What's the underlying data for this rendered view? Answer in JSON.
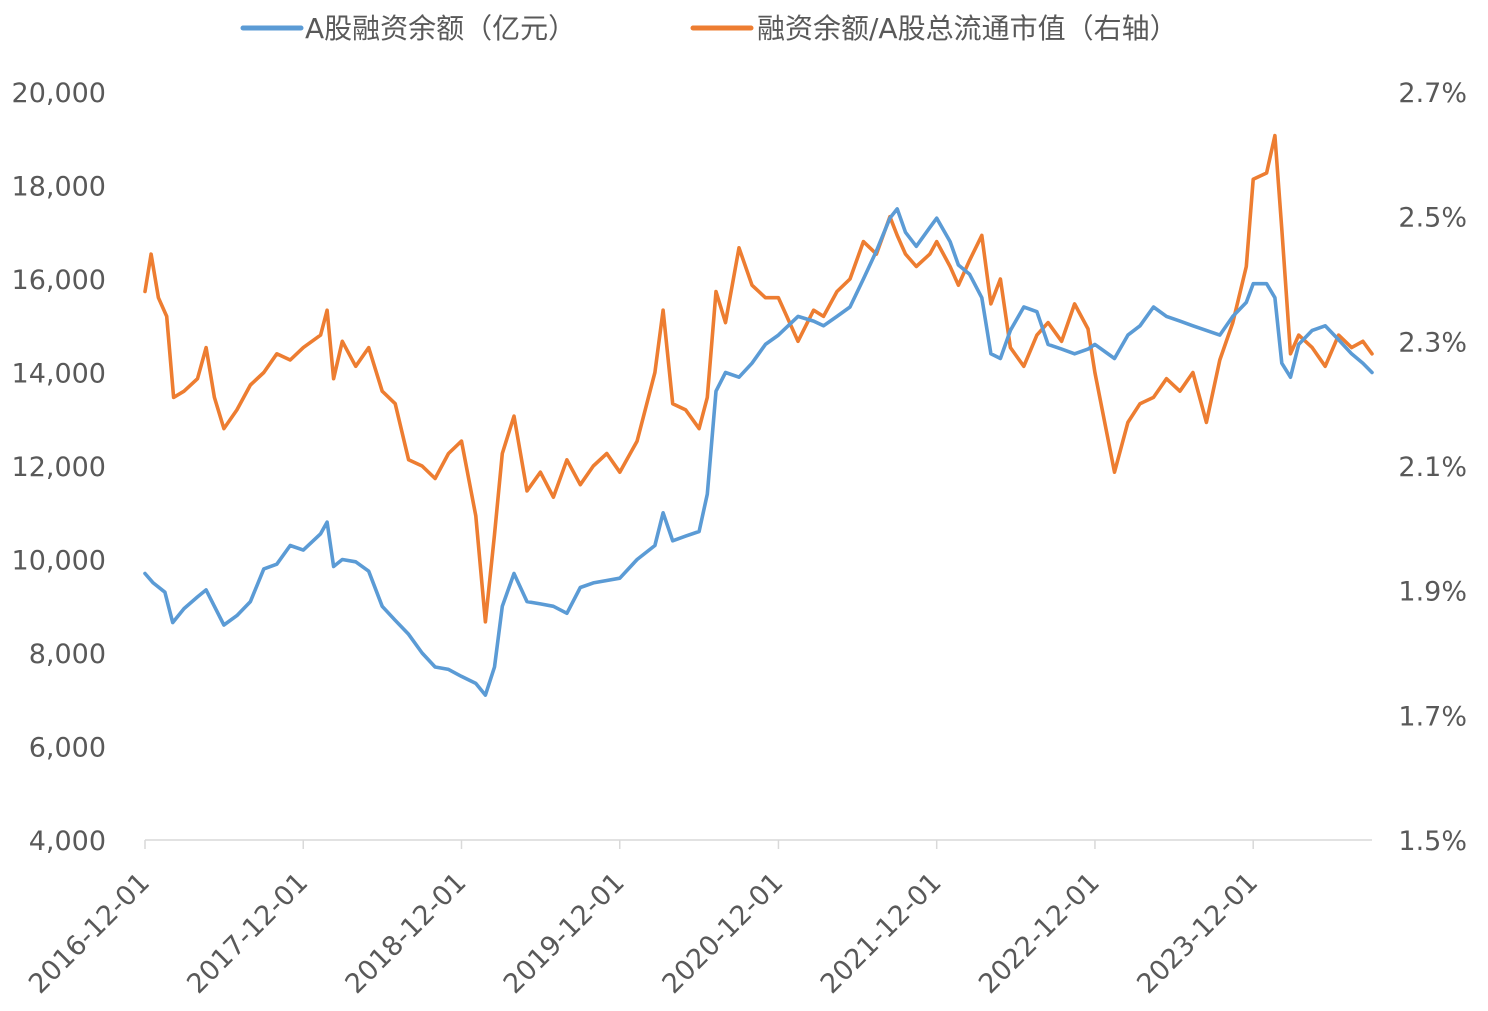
{
  "chart_data": {
    "type": "line",
    "title": "",
    "xlabel": "",
    "ylabel": "",
    "legend_position": "top",
    "grid": false,
    "x_ticks": [
      "2016-12-01",
      "2017-12-01",
      "2018-12-01",
      "2019-12-01",
      "2020-12-01",
      "2021-12-01",
      "2022-12-01",
      "2023-12-01"
    ],
    "x_range": [
      "2016-12-01",
      "2024-08-31"
    ],
    "y_left": {
      "range": [
        4000,
        20000
      ],
      "ticks": [
        "4,000",
        "6,000",
        "8,000",
        "10,000",
        "12,000",
        "14,000",
        "16,000",
        "18,000",
        "20,000"
      ]
    },
    "y_right": {
      "range": [
        1.5,
        2.7
      ],
      "unit": "%",
      "ticks": [
        "1.5%",
        "1.7%",
        "1.9%",
        "2.1%",
        "2.3%",
        "2.5%",
        "2.7%"
      ]
    },
    "series": [
      {
        "name": "A股融资余额（亿元）",
        "axis": "left",
        "color": "#5b9bd5",
        "points": [
          [
            "2016-12-01",
            9700
          ],
          [
            "2016-12-20",
            9500
          ],
          [
            "2017-01-16",
            9300
          ],
          [
            "2017-02-03",
            8650
          ],
          [
            "2017-03-01",
            8950
          ],
          [
            "2017-04-01",
            9200
          ],
          [
            "2017-04-21",
            9350
          ],
          [
            "2017-05-10",
            9000
          ],
          [
            "2017-06-01",
            8600
          ],
          [
            "2017-07-01",
            8800
          ],
          [
            "2017-08-01",
            9100
          ],
          [
            "2017-09-01",
            9800
          ],
          [
            "2017-10-01",
            9900
          ],
          [
            "2017-11-01",
            10300
          ],
          [
            "2017-12-01",
            10200
          ],
          [
            "2018-01-10",
            10550
          ],
          [
            "2018-01-25",
            10800
          ],
          [
            "2018-02-09",
            9850
          ],
          [
            "2018-03-01",
            10000
          ],
          [
            "2018-04-01",
            9950
          ],
          [
            "2018-05-01",
            9750
          ],
          [
            "2018-06-01",
            9000
          ],
          [
            "2018-07-01",
            8700
          ],
          [
            "2018-08-01",
            8400
          ],
          [
            "2018-09-01",
            8000
          ],
          [
            "2018-10-01",
            7700
          ],
          [
            "2018-11-01",
            7650
          ],
          [
            "2018-12-01",
            7500
          ],
          [
            "2019-01-03",
            7350
          ],
          [
            "2019-01-25",
            7100
          ],
          [
            "2019-02-15",
            7700
          ],
          [
            "2019-03-05",
            9000
          ],
          [
            "2019-04-01",
            9700
          ],
          [
            "2019-05-01",
            9100
          ],
          [
            "2019-06-01",
            9050
          ],
          [
            "2019-07-01",
            9000
          ],
          [
            "2019-08-01",
            8850
          ],
          [
            "2019-09-01",
            9400
          ],
          [
            "2019-10-01",
            9500
          ],
          [
            "2019-11-01",
            9550
          ],
          [
            "2019-12-01",
            9600
          ],
          [
            "2020-01-10",
            10000
          ],
          [
            "2020-02-20",
            10300
          ],
          [
            "2020-03-10",
            11000
          ],
          [
            "2020-04-01",
            10400
          ],
          [
            "2020-05-01",
            10500
          ],
          [
            "2020-06-01",
            10600
          ],
          [
            "2020-06-20",
            11400
          ],
          [
            "2020-07-10",
            13600
          ],
          [
            "2020-08-01",
            14000
          ],
          [
            "2020-09-01",
            13900
          ],
          [
            "2020-10-01",
            14200
          ],
          [
            "2020-11-01",
            14600
          ],
          [
            "2020-12-01",
            14800
          ],
          [
            "2021-01-15",
            15200
          ],
          [
            "2021-02-20",
            15100
          ],
          [
            "2021-03-15",
            15000
          ],
          [
            "2021-04-15",
            15200
          ],
          [
            "2021-05-15",
            15400
          ],
          [
            "2021-06-15",
            16000
          ],
          [
            "2021-07-15",
            16600
          ],
          [
            "2021-08-15",
            17300
          ],
          [
            "2021-09-01",
            17500
          ],
          [
            "2021-09-20",
            17000
          ],
          [
            "2021-10-15",
            16700
          ],
          [
            "2021-11-15",
            17100
          ],
          [
            "2021-12-01",
            17300
          ],
          [
            "2022-01-01",
            16800
          ],
          [
            "2022-01-20",
            16300
          ],
          [
            "2022-02-15",
            16100
          ],
          [
            "2022-03-15",
            15600
          ],
          [
            "2022-04-05",
            14400
          ],
          [
            "2022-04-27",
            14300
          ],
          [
            "2022-05-20",
            14900
          ],
          [
            "2022-06-20",
            15400
          ],
          [
            "2022-07-20",
            15300
          ],
          [
            "2022-08-15",
            14600
          ],
          [
            "2022-09-15",
            14500
          ],
          [
            "2022-10-15",
            14400
          ],
          [
            "2022-11-15",
            14500
          ],
          [
            "2022-12-01",
            14600
          ],
          [
            "2023-01-15",
            14300
          ],
          [
            "2023-02-15",
            14800
          ],
          [
            "2023-03-15",
            15000
          ],
          [
            "2023-04-15",
            15400
          ],
          [
            "2023-05-15",
            15200
          ],
          [
            "2023-06-15",
            15100
          ],
          [
            "2023-07-15",
            15000
          ],
          [
            "2023-08-15",
            14900
          ],
          [
            "2023-09-15",
            14800
          ],
          [
            "2023-10-15",
            15200
          ],
          [
            "2023-11-15",
            15500
          ],
          [
            "2023-12-01",
            15900
          ],
          [
            "2024-01-01",
            15900
          ],
          [
            "2024-01-20",
            15600
          ],
          [
            "2024-02-05",
            14200
          ],
          [
            "2024-02-25",
            13900
          ],
          [
            "2024-03-15",
            14600
          ],
          [
            "2024-04-15",
            14900
          ],
          [
            "2024-05-15",
            15000
          ],
          [
            "2024-06-15",
            14700
          ],
          [
            "2024-07-15",
            14400
          ],
          [
            "2024-08-10",
            14200
          ],
          [
            "2024-08-31",
            14000
          ]
        ]
      },
      {
        "name": "融资余额/A股总流通市值（右轴）",
        "axis": "right",
        "color": "#ed7d31",
        "points": [
          [
            "2016-12-01",
            2.38
          ],
          [
            "2016-12-15",
            2.44
          ],
          [
            "2017-01-01",
            2.37
          ],
          [
            "2017-01-20",
            2.34
          ],
          [
            "2017-02-05",
            2.21
          ],
          [
            "2017-03-01",
            2.22
          ],
          [
            "2017-04-01",
            2.24
          ],
          [
            "2017-04-21",
            2.29
          ],
          [
            "2017-05-10",
            2.21
          ],
          [
            "2017-06-01",
            2.16
          ],
          [
            "2017-07-01",
            2.19
          ],
          [
            "2017-08-01",
            2.23
          ],
          [
            "2017-09-01",
            2.25
          ],
          [
            "2017-10-01",
            2.28
          ],
          [
            "2017-11-01",
            2.27
          ],
          [
            "2017-12-01",
            2.29
          ],
          [
            "2018-01-10",
            2.31
          ],
          [
            "2018-01-25",
            2.35
          ],
          [
            "2018-02-09",
            2.24
          ],
          [
            "2018-03-01",
            2.3
          ],
          [
            "2018-04-01",
            2.26
          ],
          [
            "2018-05-01",
            2.29
          ],
          [
            "2018-06-01",
            2.22
          ],
          [
            "2018-07-01",
            2.2
          ],
          [
            "2018-08-01",
            2.11
          ],
          [
            "2018-09-01",
            2.1
          ],
          [
            "2018-10-01",
            2.08
          ],
          [
            "2018-11-01",
            2.12
          ],
          [
            "2018-12-01",
            2.14
          ],
          [
            "2019-01-03",
            2.02
          ],
          [
            "2019-01-25",
            1.85
          ],
          [
            "2019-02-15",
            1.99
          ],
          [
            "2019-03-05",
            2.12
          ],
          [
            "2019-04-01",
            2.18
          ],
          [
            "2019-05-01",
            2.06
          ],
          [
            "2019-06-01",
            2.09
          ],
          [
            "2019-07-01",
            2.05
          ],
          [
            "2019-08-01",
            2.11
          ],
          [
            "2019-09-01",
            2.07
          ],
          [
            "2019-10-01",
            2.1
          ],
          [
            "2019-11-01",
            2.12
          ],
          [
            "2019-12-01",
            2.09
          ],
          [
            "2020-01-10",
            2.14
          ],
          [
            "2020-02-20",
            2.25
          ],
          [
            "2020-03-10",
            2.35
          ],
          [
            "2020-04-01",
            2.2
          ],
          [
            "2020-05-01",
            2.19
          ],
          [
            "2020-06-01",
            2.16
          ],
          [
            "2020-06-20",
            2.21
          ],
          [
            "2020-07-10",
            2.38
          ],
          [
            "2020-08-01",
            2.33
          ],
          [
            "2020-09-01",
            2.45
          ],
          [
            "2020-10-01",
            2.39
          ],
          [
            "2020-11-01",
            2.37
          ],
          [
            "2020-12-01",
            2.37
          ],
          [
            "2021-01-15",
            2.3
          ],
          [
            "2021-02-20",
            2.35
          ],
          [
            "2021-03-15",
            2.34
          ],
          [
            "2021-04-15",
            2.38
          ],
          [
            "2021-05-15",
            2.4
          ],
          [
            "2021-06-15",
            2.46
          ],
          [
            "2021-07-15",
            2.44
          ],
          [
            "2021-08-15",
            2.5
          ],
          [
            "2021-09-01",
            2.47
          ],
          [
            "2021-09-20",
            2.44
          ],
          [
            "2021-10-15",
            2.42
          ],
          [
            "2021-11-15",
            2.44
          ],
          [
            "2021-12-01",
            2.46
          ],
          [
            "2022-01-01",
            2.42
          ],
          [
            "2022-01-20",
            2.39
          ],
          [
            "2022-02-15",
            2.43
          ],
          [
            "2022-03-15",
            2.47
          ],
          [
            "2022-04-05",
            2.36
          ],
          [
            "2022-04-27",
            2.4
          ],
          [
            "2022-05-20",
            2.29
          ],
          [
            "2022-06-20",
            2.26
          ],
          [
            "2022-07-20",
            2.31
          ],
          [
            "2022-08-15",
            2.33
          ],
          [
            "2022-09-15",
            2.3
          ],
          [
            "2022-10-15",
            2.36
          ],
          [
            "2022-11-15",
            2.32
          ],
          [
            "2022-12-01",
            2.25
          ],
          [
            "2023-01-15",
            2.09
          ],
          [
            "2023-02-15",
            2.17
          ],
          [
            "2023-03-15",
            2.2
          ],
          [
            "2023-04-15",
            2.21
          ],
          [
            "2023-05-15",
            2.24
          ],
          [
            "2023-06-15",
            2.22
          ],
          [
            "2023-07-15",
            2.25
          ],
          [
            "2023-08-15",
            2.17
          ],
          [
            "2023-09-15",
            2.27
          ],
          [
            "2023-10-15",
            2.33
          ],
          [
            "2023-11-15",
            2.42
          ],
          [
            "2023-12-01",
            2.56
          ],
          [
            "2024-01-01",
            2.57
          ],
          [
            "2024-01-20",
            2.63
          ],
          [
            "2024-02-05",
            2.48
          ],
          [
            "2024-02-25",
            2.28
          ],
          [
            "2024-03-15",
            2.31
          ],
          [
            "2024-04-15",
            2.29
          ],
          [
            "2024-05-15",
            2.26
          ],
          [
            "2024-06-15",
            2.31
          ],
          [
            "2024-07-15",
            2.29
          ],
          [
            "2024-08-10",
            2.3
          ],
          [
            "2024-08-31",
            2.28
          ]
        ]
      }
    ]
  }
}
